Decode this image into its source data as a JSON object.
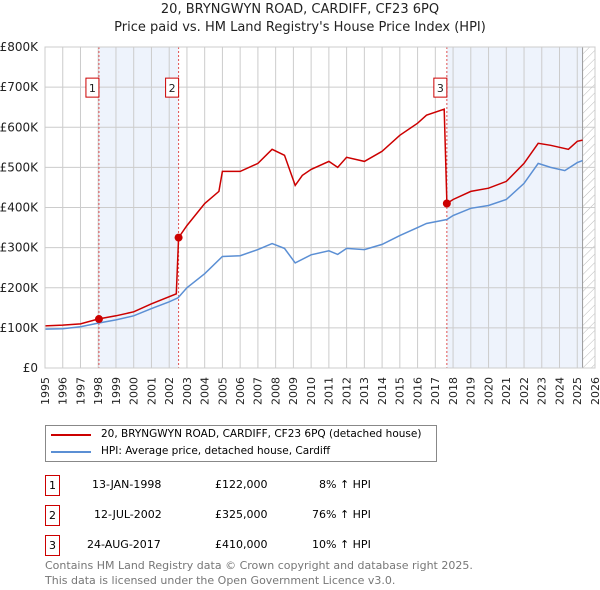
{
  "chart_data": {
    "type": "line",
    "title": "20, BRYNGWYN ROAD, CARDIFF, CF23 6PQ",
    "subtitle": "Price paid vs. HM Land Registry's House Price Index (HPI)",
    "xlim": [
      1995,
      2026
    ],
    "ylim": [
      0,
      800000
    ],
    "xticks": [
      "1995",
      "1996",
      "1997",
      "1998",
      "1999",
      "2000",
      "2001",
      "2002",
      "2003",
      "2004",
      "2005",
      "2006",
      "2007",
      "2008",
      "2009",
      "2010",
      "2011",
      "2012",
      "2013",
      "2014",
      "2015",
      "2016",
      "2017",
      "2018",
      "2019",
      "2020",
      "2021",
      "2022",
      "2023",
      "2024",
      "2025",
      "2026"
    ],
    "yticks": [
      {
        "v": 0,
        "l": "£0"
      },
      {
        "v": 100000,
        "l": "£100K"
      },
      {
        "v": 200000,
        "l": "£200K"
      },
      {
        "v": 300000,
        "l": "£300K"
      },
      {
        "v": 400000,
        "l": "£400K"
      },
      {
        "v": 500000,
        "l": "£500K"
      },
      {
        "v": 600000,
        "l": "£600K"
      },
      {
        "v": 700000,
        "l": "£700K"
      },
      {
        "v": 800000,
        "l": "£800K"
      }
    ],
    "series": [
      {
        "name": "20, BRYNGWYN ROAD, CARDIFF, CF23 6PQ (detached house)",
        "color": "#cc0000",
        "x": [
          1995,
          1996,
          1997,
          1998,
          1999,
          2000,
          2001,
          2002.4,
          2002.53,
          2003,
          2004,
          2004.8,
          2005,
          2006,
          2007,
          2007.8,
          2008.5,
          2009.1,
          2009.5,
          2010,
          2011,
          2011.5,
          2012,
          2013,
          2014,
          2015,
          2016,
          2016.5,
          2017.5,
          2017.65,
          2018,
          2019,
          2020,
          2021,
          2022,
          2022.8,
          2023.5,
          2024.5,
          2025,
          2025.3
        ],
        "y": [
          105,
          107,
          110,
          122,
          130,
          140,
          160,
          185,
          325,
          355,
          410,
          440,
          490,
          490,
          510,
          545,
          530,
          455,
          480,
          495,
          515,
          500,
          525,
          515,
          540,
          580,
          610,
          630,
          645,
          410,
          420,
          440,
          448,
          465,
          510,
          560,
          555,
          545,
          565,
          568
        ]
      },
      {
        "name": "HPI: Average price, detached house, Cardiff",
        "color": "#5b8fd4",
        "x": [
          1995,
          1996,
          1997,
          1998,
          1999,
          2000,
          2001,
          2002,
          2002.5,
          2003,
          2004,
          2005,
          2006,
          2007,
          2007.8,
          2008.5,
          2009.1,
          2010,
          2011,
          2011.5,
          2012,
          2013,
          2014,
          2015,
          2016,
          2016.5,
          2017.65,
          2018,
          2019,
          2020,
          2021,
          2022,
          2022.8,
          2023.5,
          2024.3,
          2025,
          2025.3
        ],
        "y": [
          97,
          98,
          103,
          112,
          120,
          130,
          148,
          165,
          175,
          200,
          235,
          278,
          280,
          295,
          310,
          298,
          262,
          282,
          292,
          283,
          298,
          295,
          308,
          330,
          350,
          360,
          370,
          380,
          398,
          405,
          420,
          460,
          510,
          500,
          492,
          512,
          517
        ]
      }
    ],
    "y_units": "thousands GBP",
    "sales": [
      {
        "n": "1",
        "x": 1998.04,
        "y": 122,
        "date": "13-JAN-1998",
        "price": "£122,000",
        "hpi": "8% ↑ HPI"
      },
      {
        "n": "2",
        "x": 2002.53,
        "y": 325,
        "date": "12-JUL-2002",
        "price": "£325,000",
        "hpi": "76% ↑ HPI"
      },
      {
        "n": "3",
        "x": 2017.65,
        "y": 410,
        "date": "24-AUG-2017",
        "price": "£410,000",
        "hpi": "10% ↑ HPI"
      }
    ],
    "hatch_from": 2025.3,
    "legend_placement": "below"
  },
  "legend": {
    "red": "20, BRYNGWYN ROAD, CARDIFF, CF23 6PQ (detached house)",
    "blue": "HPI: Average price, detached house, Cardiff"
  },
  "footer": {
    "line1": "Contains HM Land Registry data © Crown copyright and database right 2025.",
    "line2": "This data is licensed under the Open Government Licence v3.0."
  }
}
